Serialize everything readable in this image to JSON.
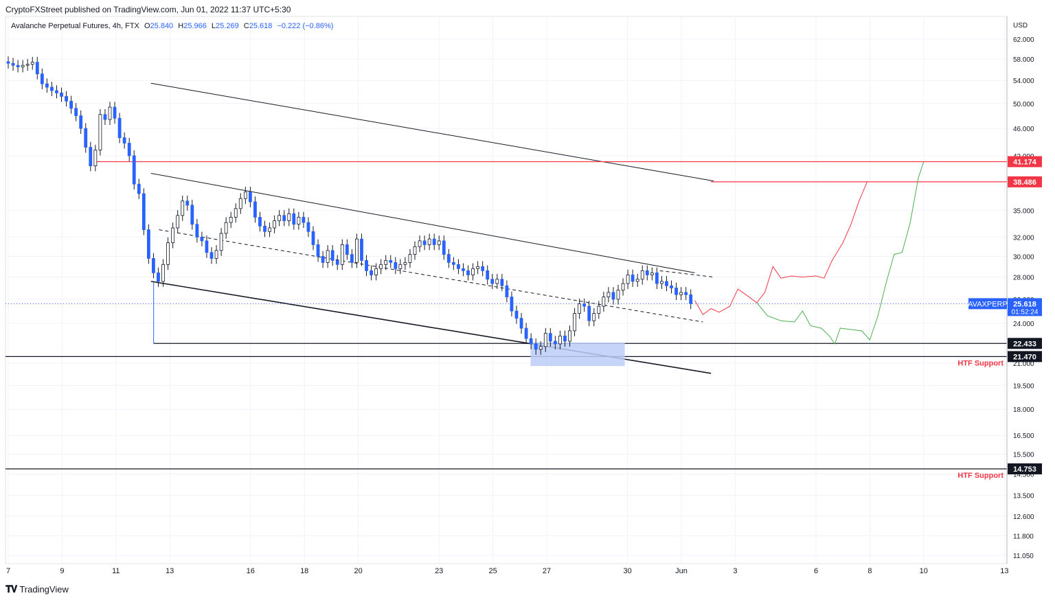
{
  "publisher": {
    "text": "CryptoFXStreet published on TradingView.com, Jun 01, 2022 11:37 UTC+5:30"
  },
  "legend": {
    "symbol_text": "Avalanche Perpetual Futures, 4h, FTX",
    "open_label": "O",
    "open": "25.840",
    "high_label": "H",
    "high": "25.966",
    "low_label": "L",
    "low": "25.269",
    "close_label": "C",
    "close": "25.618",
    "change": "−0.222 (−0.86%)"
  },
  "footer": {
    "logo_text": "TradingView",
    "logo_icon": "tradingview-logo-icon"
  },
  "colors": {
    "up_candle": "#ffffff",
    "down_candle": "#2962ff",
    "candle_outline": "#131722",
    "resistance_line": "#f23645",
    "support_line": "#131722",
    "bearish_path": "#f23645",
    "bullish_path": "#4caf50",
    "demand_zone": "#bbcdf7",
    "price_line": "#2962ff"
  },
  "chart_data": {
    "type": "candlestick",
    "symbol": "AVAXPERP",
    "timeframe": "4h",
    "y_unit": "USD",
    "y_scale": "log",
    "ylim": [
      10.8,
      64.5
    ],
    "y_ticks": [
      "62.000",
      "58.000",
      "54.000",
      "50.000",
      "46.000",
      "42.000",
      "38.486",
      "35.000",
      "32.000",
      "30.000",
      "28.000",
      "26.000",
      "24.000",
      "22.433",
      "21.470",
      "21.000",
      "19.500",
      "18.000",
      "16.500",
      "15.500",
      "14.753",
      "14.500",
      "13.500",
      "12.600",
      "11.800",
      "11.050"
    ],
    "x_ticks": [
      "7",
      "9",
      "11",
      "13",
      "16",
      "18",
      "20",
      "23",
      "25",
      "27",
      "30",
      "Jun",
      "3",
      "6",
      "8",
      "10",
      "13"
    ],
    "close_series": [
      57.2,
      56.8,
      56.5,
      56.8,
      57.0,
      57.4,
      55.2,
      53.4,
      52.8,
      52.2,
      51.8,
      51.2,
      50.4,
      49.2,
      48.0,
      46.0,
      43.2,
      40.6,
      42.8,
      48.2,
      47.4,
      49.4,
      47.6,
      44.6,
      43.8,
      42.0,
      38.2,
      37.0,
      32.8,
      29.8,
      28.4,
      27.6,
      29.2,
      31.4,
      33.0,
      34.4,
      36.1,
      35.6,
      33.4,
      32.0,
      31.6,
      30.4,
      29.8,
      30.6,
      32.4,
      33.6,
      34.2,
      35.2,
      36.4,
      37.2,
      36.0,
      34.2,
      33.2,
      32.6,
      33.0,
      33.8,
      34.4,
      33.8,
      34.6,
      33.4,
      34.2,
      33.6,
      32.6,
      31.2,
      30.0,
      29.4,
      30.6,
      29.6,
      29.2,
      31.2,
      30.2,
      29.4,
      31.8,
      29.6,
      28.6,
      28.2,
      28.8,
      29.2,
      29.6,
      29.4,
      28.8,
      29.2,
      29.4,
      30.2,
      31.0,
      31.6,
      31.2,
      31.8,
      31.2,
      31.6,
      30.2,
      29.4,
      29.2,
      28.8,
      28.6,
      28.2,
      28.8,
      29.0,
      28.6,
      27.8,
      27.4,
      27.8,
      27.2,
      26.2,
      25.0,
      24.4,
      23.6,
      22.8,
      22.4,
      22.0,
      22.2,
      23.2,
      22.6,
      22.4,
      23.0,
      22.6,
      23.4,
      24.8,
      25.6,
      25.4,
      24.2,
      24.8,
      25.4,
      26.2,
      26.6,
      26.0,
      26.8,
      27.4,
      28.2,
      27.6,
      27.8,
      28.6,
      28.2,
      28.4,
      27.4,
      27.6,
      27.2,
      27.0,
      26.4,
      26.6,
      26.4,
      25.618
    ],
    "horizontal_levels": [
      {
        "price": "41.174",
        "style": "resistance"
      },
      {
        "price": "38.486",
        "style": "resistance"
      },
      {
        "price": "22.433",
        "style": "support"
      },
      {
        "price": "21.470",
        "style": "support"
      },
      {
        "price": "14.753",
        "style": "support"
      }
    ],
    "level_labels": [
      "41.174",
      "38.486",
      "22.433",
      "21.470",
      "14.753"
    ],
    "annotations": [
      "HTF Support",
      "HTF Support"
    ],
    "current_price": {
      "label": "AVAXPERP",
      "value": "25.618",
      "countdown": "01:52:24"
    },
    "demand_zone": {
      "price_low": 20.8,
      "price_high": 22.5
    },
    "grid": true,
    "legend": "top-left"
  }
}
